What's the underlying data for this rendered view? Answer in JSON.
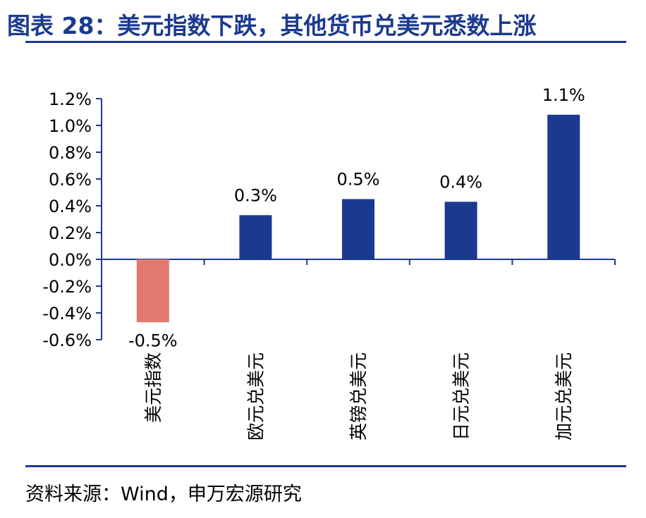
{
  "header": {
    "title": "图表 28：美元指数下跌，其他货币兑美元悉数上涨"
  },
  "footer": {
    "source": "资料来源：Wind，申万宏源研究"
  },
  "chart_data": {
    "type": "bar",
    "categories": [
      "美元指数",
      "欧元兑美元",
      "英镑兑美元",
      "日元兑美元",
      "加元兑美元"
    ],
    "values": [
      -0.47,
      0.33,
      0.45,
      0.43,
      1.08
    ],
    "data_labels": [
      "-0.5%",
      "0.3%",
      "0.5%",
      "0.4%",
      "1.1%"
    ],
    "ylim": [
      -0.6,
      1.2
    ],
    "yticks": [
      1.2,
      1.0,
      0.8,
      0.6,
      0.4,
      0.2,
      0.0,
      -0.2,
      -0.4,
      -0.6
    ],
    "ytick_labels": [
      "1.2%",
      "1.0%",
      "0.8%",
      "0.6%",
      "0.4%",
      "0.2%",
      "0.0%",
      "-0.2%",
      "-0.4%",
      "-0.6%"
    ],
    "grid": false,
    "legend": "none",
    "colors": {
      "negative": "#e07a70",
      "positive": "#1b3a8f",
      "axis": "#1b3a8f"
    }
  }
}
